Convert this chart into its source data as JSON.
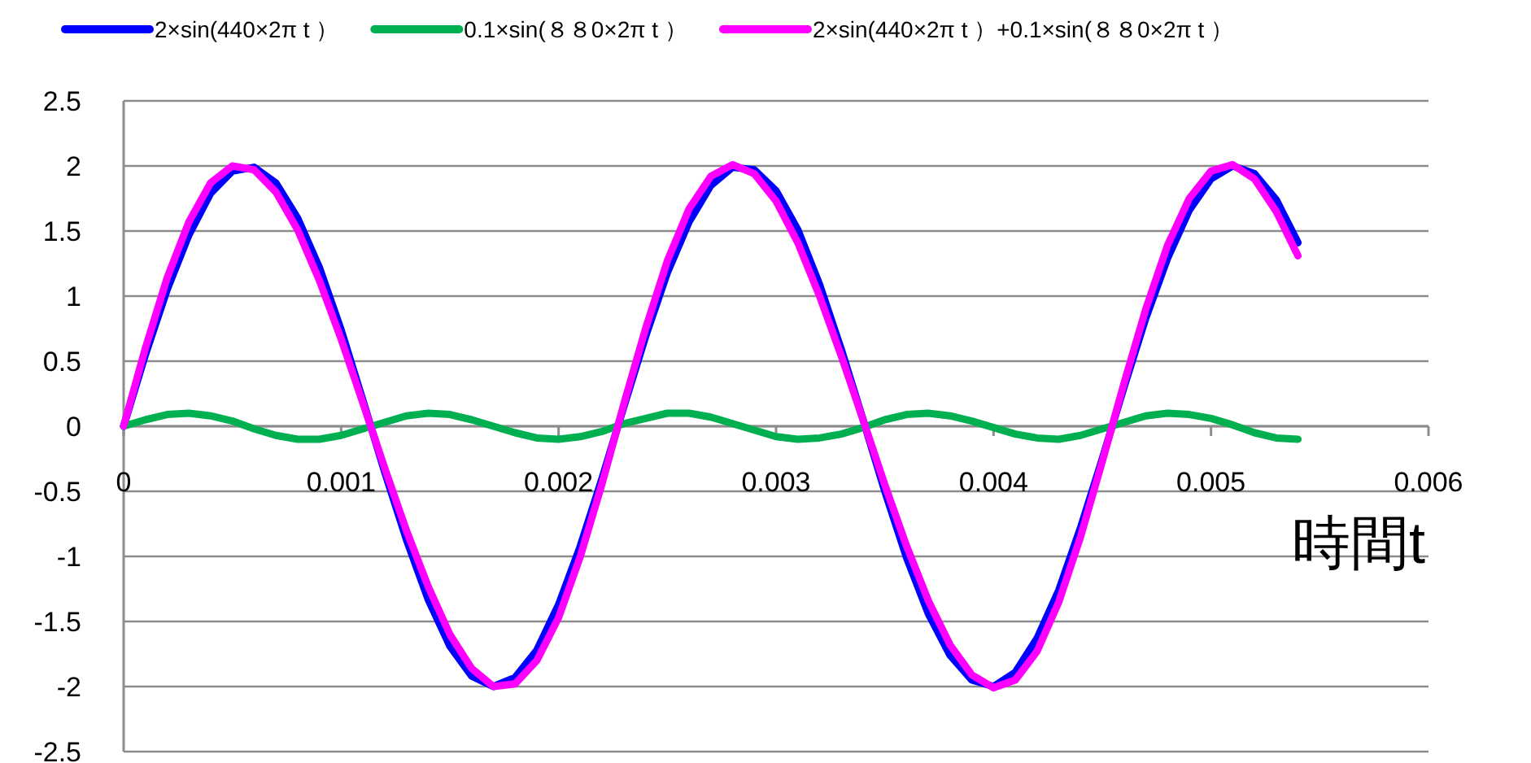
{
  "chart_data": {
    "type": "line",
    "xlabel": "時間t",
    "legend": "top",
    "grid": "y",
    "line_style": "solid",
    "marker": "none",
    "xlim": [
      0,
      0.006
    ],
    "xticks": [
      0,
      0.001,
      0.002,
      0.003,
      0.004,
      0.005,
      0.006
    ],
    "ylim": [
      -2.5,
      2.5
    ],
    "yticks": [
      -2.5,
      -2,
      -1.5,
      -1,
      -0.5,
      0,
      0.5,
      1,
      1.5,
      2,
      2.5
    ],
    "x": [
      0,
      0.0001,
      0.0002,
      0.0003,
      0.0004,
      0.0005,
      0.0006,
      0.0007,
      0.0008,
      0.0009,
      0.001,
      0.0011,
      0.0012,
      0.0013,
      0.0014,
      0.0015,
      0.0016,
      0.0017,
      0.0018,
      0.0019,
      0.002,
      0.0021,
      0.0022,
      0.0023,
      0.0024,
      0.0025,
      0.0026,
      0.0027,
      0.0028,
      0.0029,
      0.003,
      0.0031,
      0.0032,
      0.0033,
      0.0034,
      0.0035,
      0.0036,
      0.0037,
      0.0038,
      0.0039,
      0.004,
      0.0041,
      0.0042,
      0.0043,
      0.0044,
      0.0045,
      0.0046,
      0.0047,
      0.0048,
      0.0049,
      0.005,
      0.0051,
      0.0052,
      0.0053,
      0.0054
    ],
    "series": [
      {
        "name": "2×sin(440×2π t ）",
        "color": "#0000ff",
        "values": [
          0,
          0.55,
          1.05,
          1.47,
          1.79,
          1.96,
          1.99,
          1.87,
          1.6,
          1.22,
          0.74,
          0.2,
          -0.35,
          -0.87,
          -1.33,
          -1.69,
          -1.92,
          -2.0,
          -1.93,
          -1.72,
          -1.37,
          -0.92,
          -0.4,
          0.15,
          0.69,
          1.18,
          1.57,
          1.85,
          1.99,
          1.97,
          1.81,
          1.51,
          1.09,
          0.59,
          0.05,
          -0.5,
          -1.01,
          -1.44,
          -1.76,
          -1.95,
          -2.0,
          -1.89,
          -1.63,
          -1.26,
          -0.78,
          -0.25,
          0.3,
          0.83,
          1.29,
          1.66,
          1.9,
          2.0,
          1.94,
          1.74,
          1.41
        ]
      },
      {
        "name": "0.1×sin(８８0×2π t ）",
        "color": "#00b050",
        "values": [
          0,
          0.05,
          0.09,
          0.1,
          0.08,
          0.04,
          -0.02,
          -0.07,
          -0.1,
          -0.1,
          -0.07,
          -0.02,
          0.03,
          0.08,
          0.1,
          0.09,
          0.05,
          0.0,
          -0.05,
          -0.09,
          -0.1,
          -0.08,
          -0.04,
          0.02,
          0.06,
          0.1,
          0.1,
          0.07,
          0.02,
          -0.03,
          -0.08,
          -0.1,
          -0.09,
          -0.06,
          -0.01,
          0.05,
          0.09,
          0.1,
          0.08,
          0.04,
          -0.01,
          -0.06,
          -0.09,
          -0.1,
          -0.07,
          -0.02,
          0.03,
          0.08,
          0.1,
          0.09,
          0.06,
          0.01,
          -0.05,
          -0.09,
          -0.1
        ]
      },
      {
        "name": "2×sin(440×2π t ）+0.1×sin(８８0×2π t ）",
        "color": "#ff00ff",
        "values": [
          0,
          0.6,
          1.14,
          1.57,
          1.87,
          2.0,
          1.97,
          1.8,
          1.51,
          1.12,
          0.67,
          0.18,
          -0.32,
          -0.8,
          -1.23,
          -1.6,
          -1.86,
          -2.0,
          -1.98,
          -1.8,
          -1.47,
          -1.0,
          -0.44,
          0.17,
          0.75,
          1.27,
          1.67,
          1.92,
          2.01,
          1.94,
          1.73,
          1.41,
          1.0,
          0.54,
          0.05,
          -0.45,
          -0.92,
          -1.34,
          -1.68,
          -1.91,
          -2.01,
          -1.95,
          -1.73,
          -1.35,
          -0.85,
          -0.27,
          0.33,
          0.9,
          1.39,
          1.75,
          1.96,
          2.01,
          1.9,
          1.65,
          1.31
        ]
      }
    ]
  }
}
